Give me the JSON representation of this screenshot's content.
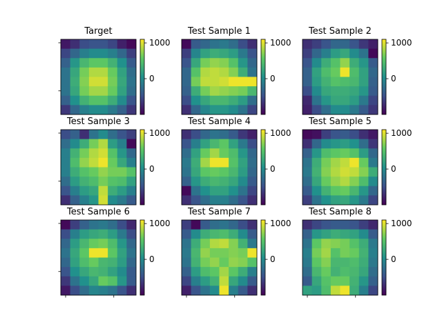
{
  "figure": {
    "cmap": "viridis",
    "colormap_stops": [
      "#440154",
      "#3b528b",
      "#21918c",
      "#5ec962",
      "#fde725"
    ]
  },
  "chart_data": [
    {
      "type": "heatmap",
      "title": "Target",
      "vmin": -1000,
      "vmax": 1100,
      "colorbar_ticks": [
        0,
        1000
      ],
      "grid": [
        [
          -850,
          -700,
          -500,
          -450,
          -450,
          -550,
          -800,
          -950
        ],
        [
          -550,
          -300,
          -100,
          0,
          0,
          -100,
          -300,
          -600
        ],
        [
          -350,
          100,
          400,
          550,
          550,
          350,
          50,
          -400
        ],
        [
          -200,
          250,
          650,
          850,
          850,
          600,
          200,
          -250
        ],
        [
          -200,
          300,
          700,
          950,
          950,
          650,
          250,
          -200
        ],
        [
          -200,
          250,
          650,
          800,
          800,
          600,
          200,
          -250
        ],
        [
          -350,
          50,
          350,
          500,
          500,
          300,
          0,
          -450
        ],
        [
          -650,
          -300,
          -100,
          0,
          0,
          -150,
          -350,
          -650
        ]
      ]
    },
    {
      "type": "heatmap",
      "title": "Test Sample 1",
      "vmin": -1000,
      "vmax": 1100,
      "colorbar_ticks": [
        0,
        1000
      ],
      "grid": [
        [
          -950,
          -400,
          -300,
          -200,
          -150,
          -250,
          -500,
          -700
        ],
        [
          -600,
          -50,
          200,
          300,
          250,
          150,
          -150,
          -450
        ],
        [
          -450,
          250,
          650,
          750,
          700,
          500,
          100,
          -300
        ],
        [
          -300,
          500,
          850,
          900,
          850,
          700,
          300,
          -200
        ],
        [
          -300,
          650,
          900,
          900,
          950,
          1050,
          1050,
          1050
        ],
        [
          -350,
          300,
          650,
          800,
          750,
          700,
          650,
          400
        ],
        [
          -500,
          50,
          250,
          400,
          400,
          300,
          150,
          -250
        ],
        [
          -700,
          -300,
          -50,
          100,
          100,
          0,
          -200,
          -550
        ]
      ]
    },
    {
      "type": "heatmap",
      "title": "Test Sample 2",
      "vmin": -1000,
      "vmax": 1100,
      "colorbar_ticks": [
        0,
        1000
      ],
      "grid": [
        [
          -700,
          -600,
          -450,
          -300,
          -300,
          -450,
          -650,
          -800
        ],
        [
          -600,
          -300,
          -100,
          150,
          250,
          0,
          -200,
          -950
        ],
        [
          -450,
          0,
          300,
          500,
          750,
          300,
          100,
          -400
        ],
        [
          -350,
          200,
          450,
          600,
          1050,
          450,
          200,
          -300
        ],
        [
          -350,
          150,
          350,
          500,
          450,
          400,
          200,
          -350
        ],
        [
          -500,
          0,
          250,
          300,
          300,
          250,
          100,
          -400
        ],
        [
          -750,
          -200,
          100,
          250,
          250,
          150,
          -150,
          -550
        ],
        [
          -800,
          -500,
          -250,
          0,
          0,
          -150,
          -400,
          -650
        ]
      ]
    },
    {
      "type": "heatmap",
      "title": "Test Sample 3",
      "vmin": -1000,
      "vmax": 1100,
      "colorbar_ticks": [
        0,
        1000
      ],
      "grid": [
        [
          -500,
          -350,
          -700,
          -200,
          0,
          -250,
          -450,
          -600
        ],
        [
          -250,
          0,
          300,
          650,
          850,
          150,
          -100,
          -950
        ],
        [
          -100,
          350,
          650,
          850,
          950,
          500,
          100,
          -300
        ],
        [
          -100,
          450,
          750,
          900,
          1050,
          600,
          250,
          -100
        ],
        [
          -100,
          300,
          500,
          600,
          750,
          650,
          650,
          500
        ],
        [
          -250,
          150,
          350,
          450,
          650,
          500,
          450,
          200
        ],
        [
          -450,
          -100,
          150,
          250,
          900,
          300,
          150,
          -100
        ],
        [
          -700,
          -350,
          -100,
          100,
          950,
          0,
          -150,
          -400
        ]
      ]
    },
    {
      "type": "heatmap",
      "title": "Test Sample 4",
      "vmin": -1000,
      "vmax": 1100,
      "colorbar_ticks": [
        0,
        1000
      ],
      "grid": [
        [
          -700,
          -500,
          -300,
          -200,
          -250,
          -400,
          -650,
          -800
        ],
        [
          -450,
          -100,
          200,
          400,
          550,
          200,
          -150,
          -500
        ],
        [
          -250,
          200,
          600,
          800,
          600,
          450,
          100,
          -300
        ],
        [
          -150,
          300,
          800,
          1050,
          1050,
          500,
          200,
          -250
        ],
        [
          -200,
          250,
          550,
          600,
          550,
          400,
          150,
          -300
        ],
        [
          -350,
          100,
          300,
          400,
          350,
          250,
          0,
          -400
        ],
        [
          -950,
          -200,
          50,
          200,
          200,
          50,
          -200,
          -550
        ],
        [
          -700,
          -450,
          -250,
          -100,
          -100,
          -250,
          -450,
          -700
        ]
      ]
    },
    {
      "type": "heatmap",
      "title": "Test Sample 5",
      "vmin": -1000,
      "vmax": 1100,
      "colorbar_ticks": [
        0,
        1000
      ],
      "grid": [
        [
          -950,
          -900,
          -600,
          -450,
          -400,
          -500,
          -700,
          -850
        ],
        [
          -700,
          -300,
          0,
          100,
          150,
          50,
          -250,
          -650
        ],
        [
          -350,
          100,
          450,
          550,
          600,
          500,
          150,
          -300
        ],
        [
          -200,
          300,
          650,
          800,
          900,
          1050,
          600,
          -150
        ],
        [
          -150,
          350,
          700,
          850,
          950,
          900,
          700,
          300
        ],
        [
          -250,
          250,
          600,
          750,
          850,
          700,
          450,
          0
        ],
        [
          -400,
          50,
          350,
          550,
          600,
          400,
          100,
          -300
        ],
        [
          -600,
          -200,
          50,
          200,
          250,
          100,
          -150,
          -550
        ]
      ]
    },
    {
      "type": "heatmap",
      "title": "Test Sample 6",
      "vmin": -1000,
      "vmax": 1100,
      "colorbar_ticks": [
        0,
        1000
      ],
      "grid": [
        [
          -950,
          -600,
          -350,
          -200,
          -150,
          -250,
          -500,
          -750
        ],
        [
          -500,
          -100,
          150,
          250,
          300,
          150,
          -150,
          -500
        ],
        [
          -300,
          150,
          400,
          600,
          650,
          450,
          100,
          -300
        ],
        [
          -200,
          250,
          550,
          1050,
          1050,
          550,
          200,
          -200
        ],
        [
          -300,
          200,
          450,
          600,
          400,
          350,
          150,
          -300
        ],
        [
          -450,
          50,
          250,
          400,
          350,
          200,
          0,
          -400
        ],
        [
          -650,
          -200,
          50,
          250,
          600,
          500,
          100,
          -400
        ],
        [
          -850,
          -500,
          -250,
          -50,
          -100,
          -200,
          -450,
          -700
        ]
      ]
    },
    {
      "type": "heatmap",
      "title": "Test Sample 7",
      "vmin": -1000,
      "vmax": 1100,
      "colorbar_ticks": [
        0,
        1000
      ],
      "grid": [
        [
          -600,
          -950,
          -400,
          -250,
          -200,
          -300,
          -500,
          -700
        ],
        [
          -400,
          0,
          300,
          400,
          450,
          300,
          0,
          -400
        ],
        [
          -200,
          300,
          650,
          850,
          900,
          700,
          350,
          -150
        ],
        [
          -150,
          400,
          750,
          650,
          650,
          700,
          650,
          1050
        ],
        [
          -200,
          350,
          650,
          750,
          600,
          750,
          700,
          500
        ],
        [
          -350,
          150,
          450,
          550,
          800,
          550,
          300,
          -100
        ],
        [
          -550,
          -100,
          150,
          350,
          900,
          250,
          0,
          -400
        ],
        [
          -800,
          -450,
          -200,
          0,
          1050,
          -100,
          -400,
          -700
        ]
      ]
    },
    {
      "type": "heatmap",
      "title": "Test Sample 8",
      "vmin": -1000,
      "vmax": 1100,
      "colorbar_ticks": [
        0,
        1000
      ],
      "grid": [
        [
          -700,
          -550,
          -450,
          -400,
          -400,
          -450,
          -600,
          -750
        ],
        [
          -350,
          100,
          200,
          300,
          250,
          200,
          0,
          -400
        ],
        [
          -200,
          550,
          750,
          700,
          650,
          500,
          300,
          -150
        ],
        [
          -100,
          650,
          800,
          500,
          650,
          600,
          350,
          -100
        ],
        [
          -150,
          550,
          700,
          400,
          400,
          450,
          300,
          -150
        ],
        [
          -250,
          400,
          600,
          350,
          450,
          400,
          250,
          -250
        ],
        [
          -400,
          250,
          500,
          600,
          600,
          350,
          100,
          -350
        ],
        [
          200,
          150,
          450,
          900,
          1050,
          300,
          -100,
          -550
        ]
      ]
    }
  ]
}
